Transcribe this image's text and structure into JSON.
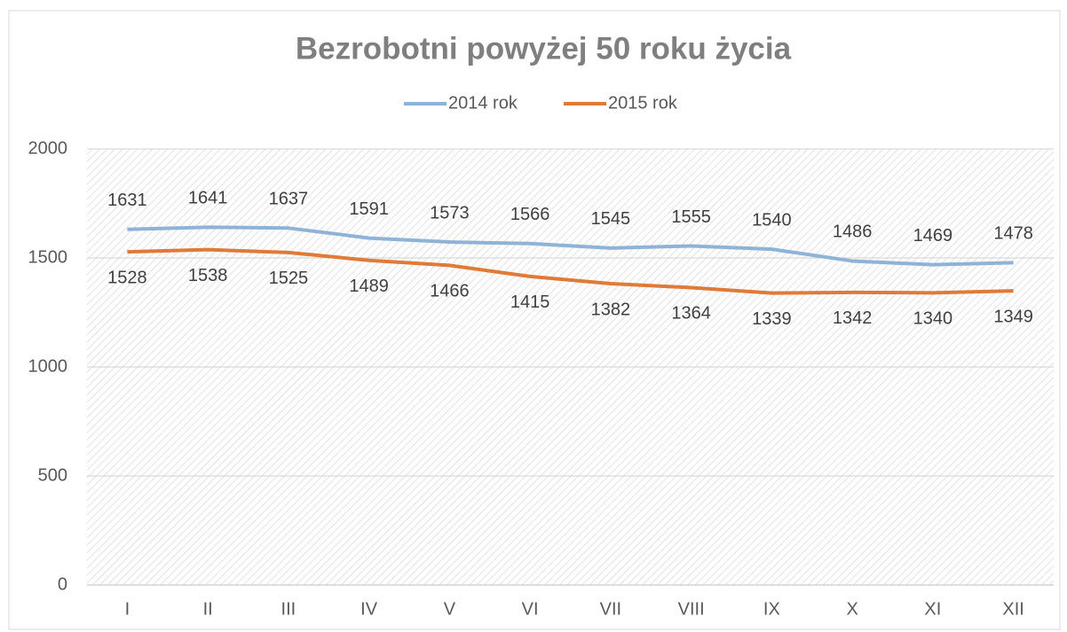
{
  "chart_data": {
    "type": "line",
    "title": "Bezrobotni powyżej 50 roku życia",
    "categories": [
      "I",
      "II",
      "III",
      "IV",
      "V",
      "VI",
      "VII",
      "VIII",
      "IX",
      "X",
      "XI",
      "XII"
    ],
    "series": [
      {
        "name": "2014 rok",
        "color": "#8fb3d6",
        "values": [
          1631,
          1641,
          1637,
          1591,
          1573,
          1566,
          1545,
          1555,
          1540,
          1486,
          1469,
          1478
        ]
      },
      {
        "name": "2015 rok",
        "color": "#e07a38",
        "values": [
          1528,
          1538,
          1525,
          1489,
          1466,
          1415,
          1382,
          1364,
          1339,
          1342,
          1340,
          1349
        ]
      }
    ],
    "ylim": [
      0,
      2000
    ],
    "yticks": [
      0,
      500,
      1000,
      1500,
      2000
    ],
    "grid": true,
    "legend": "top"
  }
}
